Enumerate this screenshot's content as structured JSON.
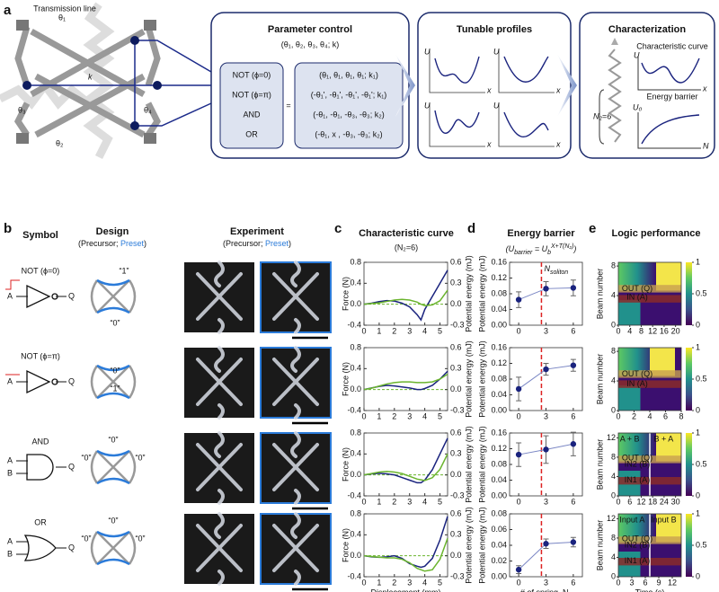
{
  "panel_a": {
    "label": "a",
    "transmission_line": "Transmission line",
    "angles": [
      "θ₁",
      "θ₂",
      "θ₃",
      "θ₄"
    ],
    "k": "k",
    "parameter_control": {
      "title": "Parameter control",
      "subtitle": "(θ₁, θ₂, θ₃, θ₄; k)",
      "gates": [
        "NOT (ϕ=0)",
        "NOT (ϕ=π)",
        "AND",
        "OR"
      ],
      "equals": "=",
      "params": [
        "(θ₁, θ₁, θ₁, θ₁; k₁)",
        "(-θ₁', -θ₁', -θ₁', -θ₁'; k₁)",
        "(-θ₁, -θ₁, -θ₃, -θ₃; k₂)",
        "(-θ₁, x , -θ₃, -θ₃; k₂)"
      ]
    },
    "tunable_profiles": {
      "title": "Tunable profiles",
      "y_label": "U",
      "x_label": "x"
    },
    "characterization": {
      "title": "Characterization",
      "curve": "Characteristic curve",
      "barrier": "Energy barrier",
      "n2": "N₂=6",
      "u": "U",
      "x": "x",
      "ub": "U₀",
      "n": "N"
    }
  },
  "panel_b": {
    "label": "b",
    "symbol": "Symbol",
    "design": "Design",
    "experiment": "Experiment",
    "open": "(Precursor; ",
    "preset": "Preset",
    "close": ")",
    "gates": [
      {
        "name": "NOT (ϕ=0)",
        "inputs": [
          "A"
        ],
        "output": "Q",
        "design_labels": [
          "“1”",
          "“0”"
        ]
      },
      {
        "name": "NOT (ϕ=π)",
        "inputs": [
          "A"
        ],
        "output": "Q",
        "design_labels": [
          "“0”",
          "“1”"
        ]
      },
      {
        "name": "AND",
        "inputs": [
          "A",
          "B"
        ],
        "output": "Q",
        "design_labels": [
          "“0”",
          "“0”",
          "“0”"
        ]
      },
      {
        "name": "OR",
        "inputs": [
          "A",
          "B"
        ],
        "output": "Q",
        "design_labels": [
          "“0”",
          "“0”",
          "“0”"
        ]
      }
    ]
  },
  "panel_c": {
    "label": "c",
    "title": "Characteristic curve",
    "subtitle": "(N₂=6)",
    "x_label": "Displacement (mm)",
    "y_label": "Force (N)",
    "y2_label": "Potential energy (mJ)",
    "charts": [
      {
        "type": "line",
        "xlim": [
          0,
          5.5
        ],
        "xticks": [
          0,
          1,
          2,
          3,
          4,
          5
        ],
        "ylim": [
          -0.4,
          0.8
        ],
        "yticks": [
          -0.4,
          {
            "value": 0,
            "label": "0.0"
          },
          0.4,
          0.8
        ],
        "y2lim": [
          -0.3,
          0.6
        ],
        "y2ticks": [
          -0.3,
          {
            "value": 0,
            "label": "0.0"
          },
          0.3,
          0.6
        ],
        "x": [
          0,
          0.5,
          1,
          1.5,
          2,
          2.5,
          3,
          3.5,
          3.75,
          4,
          4.5,
          5,
          5.5
        ],
        "series": [
          {
            "color": "#1a237e",
            "values": [
              0,
              0.02,
              0.05,
              0.07,
              0.06,
              0.02,
              -0.05,
              -0.2,
              -0.3,
              -0.1,
              0.15,
              0.4,
              0.65
            ]
          },
          {
            "color": "#6ab42d",
            "axis": "y2",
            "values": [
              0,
              0.01,
              0.02,
              0.04,
              0.06,
              0.07,
              0.06,
              0.03,
              0,
              -0.02,
              -0.01,
              0.05,
              0.2
            ]
          }
        ]
      },
      {
        "type": "line",
        "xlim": [
          0,
          5.5
        ],
        "xticks": [
          0,
          1,
          2,
          3,
          4,
          5
        ],
        "ylim": [
          -0.4,
          0.8
        ],
        "yticks": [
          -0.4,
          {
            "value": 0,
            "label": "0.0"
          },
          0.4,
          0.8
        ],
        "y2lim": [
          -0.3,
          0.6
        ],
        "y2ticks": [
          -0.3,
          {
            "value": 0,
            "label": "0.0"
          },
          0.3,
          0.6
        ],
        "x": [
          0,
          0.5,
          1,
          1.5,
          2,
          2.5,
          3,
          3.5,
          3.75,
          4,
          4.5,
          5,
          5.5
        ],
        "series": [
          {
            "color": "#1a237e",
            "values": [
              0,
              0.03,
              0.06,
              0.08,
              0.07,
              0.05,
              0.03,
              0,
              0,
              0.02,
              0.08,
              0.2,
              0.35
            ]
          },
          {
            "color": "#6ab42d",
            "axis": "y2",
            "values": [
              0,
              0.02,
              0.05,
              0.08,
              0.1,
              0.11,
              0.11,
              0.1,
              0.1,
              0.1,
              0.11,
              0.15,
              0.22
            ]
          }
        ]
      },
      {
        "type": "line",
        "xlim": [
          0,
          5.5
        ],
        "xticks": [
          0,
          1,
          2,
          3,
          4,
          5
        ],
        "ylim": [
          -0.4,
          0.8
        ],
        "yticks": [
          -0.4,
          {
            "value": 0,
            "label": "0.0"
          },
          0.4,
          0.8
        ],
        "y2lim": [
          -0.3,
          0.6
        ],
        "y2ticks": [
          -0.3,
          {
            "value": 0,
            "label": "0.0"
          },
          0.3,
          0.6
        ],
        "x": [
          0,
          0.5,
          1,
          1.5,
          2,
          2.5,
          3,
          3.5,
          3.75,
          4,
          4.5,
          5,
          5.5
        ],
        "series": [
          {
            "color": "#1a237e",
            "values": [
              0,
              0.02,
              0.03,
              0.02,
              0,
              -0.05,
              -0.1,
              -0.15,
              -0.15,
              -0.1,
              0.1,
              0.4,
              0.7
            ]
          },
          {
            "color": "#6ab42d",
            "axis": "y2",
            "values": [
              0,
              0.02,
              0.04,
              0.05,
              0.04,
              0.02,
              -0.02,
              -0.06,
              -0.07,
              -0.08,
              -0.04,
              0.08,
              0.3
            ]
          }
        ]
      },
      {
        "type": "line",
        "xlim": [
          0,
          5.5
        ],
        "xticks": [
          0,
          1,
          2,
          3,
          4,
          5
        ],
        "ylim": [
          -0.4,
          0.8
        ],
        "yticks": [
          -0.4,
          {
            "value": 0,
            "label": "0.0"
          },
          0.4,
          0.8
        ],
        "y2lim": [
          -0.3,
          0.6
        ],
        "y2ticks": [
          -0.3,
          {
            "value": 0,
            "label": "0.0"
          },
          0.3,
          0.6
        ],
        "x": [
          0,
          0.5,
          1,
          1.5,
          2,
          2.5,
          3,
          3.5,
          3.75,
          4,
          4.5,
          5,
          5.5
        ],
        "series": [
          {
            "color": "#1a237e",
            "values": [
              0,
              -0.02,
              -0.03,
              -0.02,
              0,
              -0.05,
              -0.15,
              -0.2,
              -0.22,
              -0.2,
              -0.05,
              0.3,
              0.75
            ]
          },
          {
            "color": "#6ab42d",
            "axis": "y2",
            "values": [
              0,
              -0.01,
              -0.02,
              -0.03,
              -0.03,
              -0.05,
              -0.1,
              -0.18,
              -0.2,
              -0.22,
              -0.2,
              -0.05,
              0.25
            ]
          }
        ]
      }
    ]
  },
  "panel_d": {
    "label": "d",
    "title": "Energy barrier",
    "formula": {
      "open": "(U",
      "sub1": "barrier",
      "eq": " = U",
      "sub2": "b",
      "sup": "X+T(N₂)",
      "close": ")"
    },
    "annotation": {
      "n": "N",
      "sub": "soliton"
    },
    "soliton_x": 2.5,
    "y_label": "Potential energy (mJ)",
    "x_label": "# of spring, N₂",
    "charts": [
      {
        "type": "line",
        "color": "#1a237e",
        "xlim": [
          -1,
          7
        ],
        "xticks": [
          0,
          3,
          6
        ],
        "ylim": [
          0,
          0.16
        ],
        "yticks": [
          {
            "value": 0,
            "label": "0.00"
          },
          0.04,
          0.08,
          0.12,
          0.16
        ],
        "x": [
          0,
          3,
          6
        ],
        "values": [
          0.065,
          0.093,
          0.095
        ],
        "errors": [
          0.02,
          0.018,
          0.02
        ]
      },
      {
        "type": "line",
        "color": "#1a237e",
        "xlim": [
          -1,
          7
        ],
        "xticks": [
          0,
          3,
          6
        ],
        "ylim": [
          0,
          0.16
        ],
        "yticks": [
          {
            "value": 0,
            "label": "0.00"
          },
          0.04,
          0.08,
          0.12,
          0.16
        ],
        "x": [
          0,
          3,
          6
        ],
        "values": [
          0.055,
          0.105,
          0.115
        ],
        "errors": [
          0.03,
          0.015,
          0.015
        ]
      },
      {
        "type": "line",
        "color": "#1a237e",
        "xlim": [
          -1,
          7
        ],
        "xticks": [
          0,
          3,
          6
        ],
        "ylim": [
          0,
          0.16
        ],
        "yticks": [
          {
            "value": 0,
            "label": "0.00"
          },
          0.04,
          0.08,
          0.12,
          0.16
        ],
        "x": [
          0,
          3,
          6
        ],
        "values": [
          0.105,
          0.118,
          0.132
        ],
        "errors": [
          0.03,
          0.035,
          0.03
        ]
      },
      {
        "type": "line",
        "color": "#1a237e",
        "xlim": [
          -1,
          7
        ],
        "xticks": [
          0,
          3,
          6
        ],
        "ylim": [
          0,
          0.08
        ],
        "yticks": [
          {
            "value": 0,
            "label": "0.00"
          },
          0.02,
          0.04,
          0.06,
          0.08
        ],
        "x": [
          0,
          3,
          6
        ],
        "values": [
          0.009,
          0.042,
          0.044
        ],
        "errors": [
          0.005,
          0.006,
          0.006
        ]
      }
    ]
  },
  "panel_e": {
    "label": "e",
    "title": "Logic performance",
    "y_label": "Beam number",
    "x_label": "Time (s)",
    "colorbar_ticks": [
      0,
      0.5,
      1
    ],
    "charts": [
      {
        "type": "heatmap",
        "xlim": [
          0,
          22
        ],
        "xticks": [
          0,
          4,
          8,
          12,
          16,
          20
        ],
        "ylim": [
          0,
          8.5
        ],
        "yticks": [
          0,
          4,
          8
        ],
        "annotations": [
          "OUT (Q)",
          "IN (A)"
        ]
      },
      {
        "type": "heatmap",
        "xlim": [
          0,
          8
        ],
        "xticks": [
          0,
          2,
          4,
          6,
          8
        ],
        "ylim": [
          0,
          8.5
        ],
        "yticks": [
          0,
          4,
          8
        ],
        "annotations": [
          "OUT (Q)",
          "IN (A)"
        ]
      },
      {
        "type": "heatmap",
        "xlim": [
          0,
          33
        ],
        "xticks": [
          0,
          6,
          12,
          18,
          24,
          30
        ],
        "ylim": [
          0,
          13
        ],
        "yticks": [
          0,
          4,
          8,
          12
        ],
        "annotations": [
          "A + B",
          "B + A",
          "OUT (Q)",
          "IN2 (B)",
          "IN1 (A)"
        ]
      },
      {
        "type": "heatmap",
        "xlim": [
          0,
          14
        ],
        "xticks": [
          0,
          3,
          6,
          9,
          12
        ],
        "ylim": [
          0,
          13
        ],
        "yticks": [
          0,
          4,
          8,
          12
        ],
        "annotations": [
          "Input A",
          "Input B",
          "OUT (Q)",
          "IN2 (B)",
          "IN1 (A)"
        ]
      }
    ]
  }
}
